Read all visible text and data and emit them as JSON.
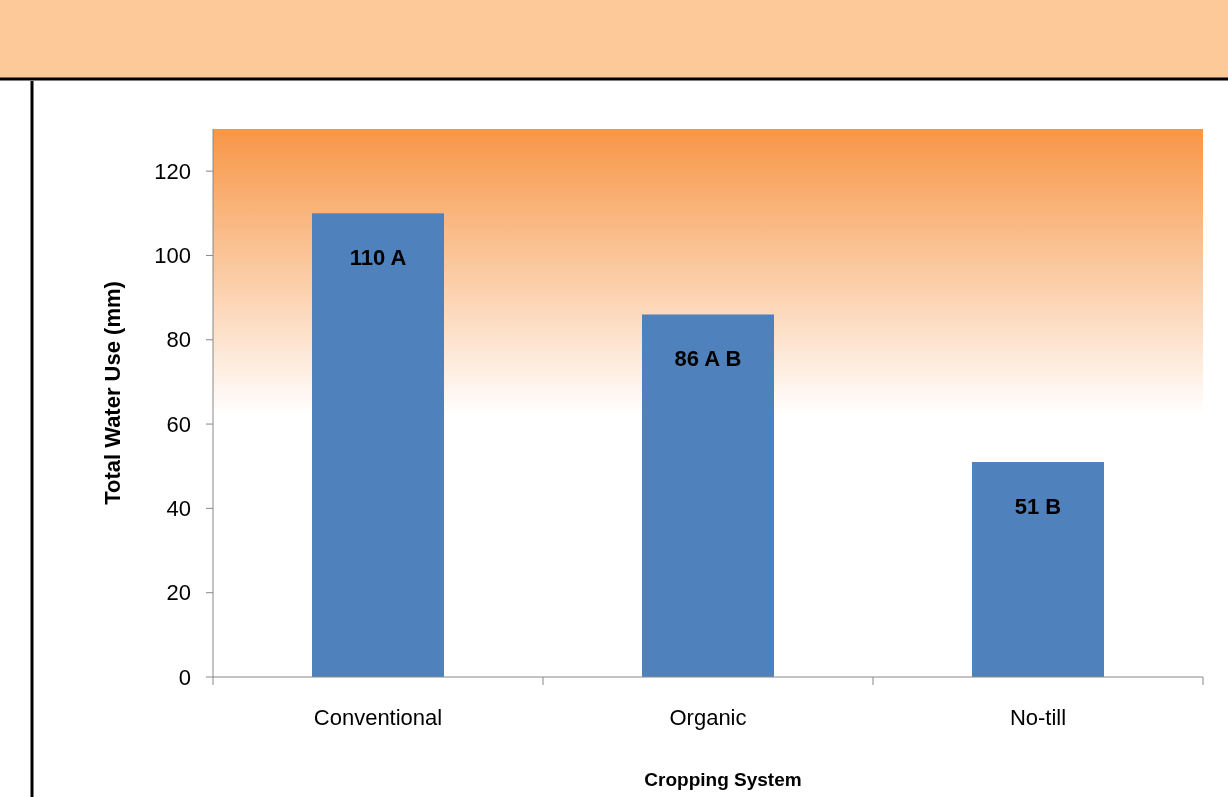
{
  "chart_data": {
    "type": "bar",
    "xlabel": "Cropping System",
    "ylabel": "Total Water Use (mm)",
    "categories": [
      "Conventional",
      "Organic",
      "No-till"
    ],
    "values": [
      110,
      86,
      51
    ],
    "value_labels": [
      "110 A",
      "86 A B",
      "51 B"
    ],
    "color": "#4f81bd",
    "ylim": [
      0,
      130
    ],
    "yticks": [
      0,
      20,
      40,
      60,
      80,
      100,
      120
    ],
    "grid": false
  }
}
